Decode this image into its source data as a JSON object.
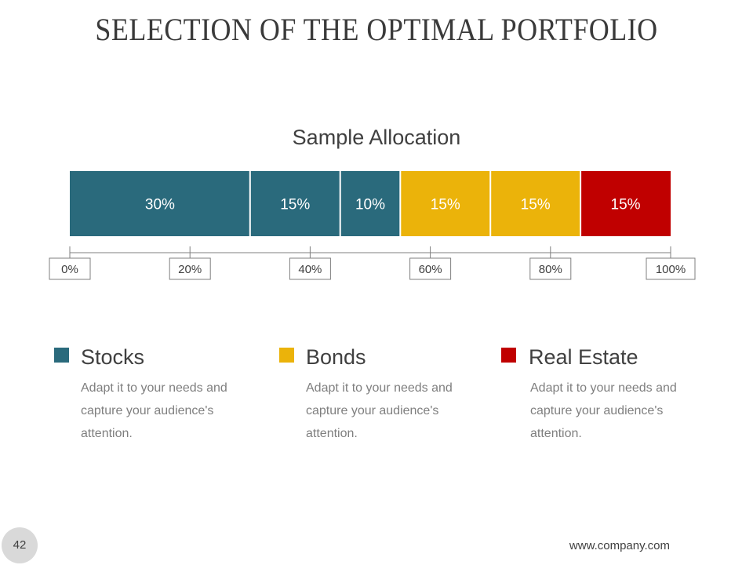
{
  "title": "SELECTION OF THE OPTIMAL PORTFOLIO",
  "chart_data": {
    "type": "bar",
    "orientation": "horizontal-stacked",
    "title": "Sample Allocation",
    "segments": [
      {
        "value": 30,
        "label": "30%",
        "color": "#2a6a7c",
        "category": "Stocks"
      },
      {
        "value": 15,
        "label": "15%",
        "color": "#2a6a7c",
        "category": "Stocks"
      },
      {
        "value": 10,
        "label": "10%",
        "color": "#2a6a7c",
        "category": "Stocks"
      },
      {
        "value": 15,
        "label": "15%",
        "color": "#ebb30a",
        "category": "Bonds"
      },
      {
        "value": 15,
        "label": "15%",
        "color": "#ebb30a",
        "category": "Bonds"
      },
      {
        "value": 15,
        "label": "15%",
        "color": "#c00000",
        "category": "Real Estate"
      }
    ],
    "axis": {
      "range": [
        0,
        100
      ],
      "ticks": [
        0,
        20,
        40,
        60,
        80,
        100
      ],
      "tick_labels": [
        "0%",
        "20%",
        "40%",
        "60%",
        "80%",
        "100%"
      ]
    },
    "grid": false
  },
  "legend": [
    {
      "name": "Stocks",
      "color": "#2a6a7c",
      "description": "Adapt it to your needs and capture your audience's attention."
    },
    {
      "name": "Bonds",
      "color": "#ebb30a",
      "description": "Adapt it to your needs and capture your audience's attention."
    },
    {
      "name": "Real Estate",
      "color": "#c00000",
      "description": "Adapt it to your needs and capture your audience's attention."
    }
  ],
  "footer": {
    "page_number": "42",
    "url": "www.company.com"
  }
}
